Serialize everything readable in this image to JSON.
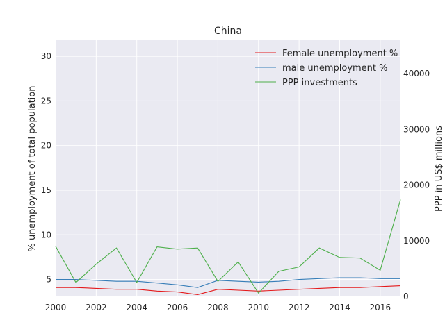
{
  "chart_data": {
    "type": "line",
    "title": "China",
    "ylabel_left": "% unemployment of total population",
    "ylabel_right": "PPP in US$ millions",
    "x": [
      2000,
      2001,
      2002,
      2003,
      2004,
      2005,
      2006,
      2007,
      2008,
      2009,
      2010,
      2011,
      2012,
      2013,
      2014,
      2015,
      2016,
      2017
    ],
    "xlim": [
      2000,
      2017
    ],
    "x_ticks": [
      2000,
      2002,
      2004,
      2006,
      2008,
      2010,
      2012,
      2014,
      2016
    ],
    "y_left_lim": [
      3.1,
      31.8
    ],
    "y_left_ticks": [
      5,
      10,
      15,
      20,
      25,
      30
    ],
    "y_right_lim": [
      0,
      46000
    ],
    "y_right_ticks": [
      0,
      10000,
      20000,
      30000,
      40000
    ],
    "grid": true,
    "legend_position": "top-right",
    "series": [
      {
        "name": "Female unemployment %",
        "axis": "left",
        "color": "#e41a1c",
        "values": [
          4.1,
          4.1,
          4.0,
          3.9,
          3.9,
          3.7,
          3.6,
          3.3,
          3.9,
          3.8,
          3.7,
          3.8,
          3.9,
          4.0,
          4.1,
          4.1,
          4.2,
          4.3
        ]
      },
      {
        "name": "male unemployment %",
        "axis": "left",
        "color": "#377eb8",
        "values": [
          5.0,
          5.0,
          4.9,
          4.8,
          4.8,
          4.6,
          4.4,
          4.1,
          4.9,
          4.8,
          4.7,
          4.8,
          5.0,
          5.1,
          5.2,
          5.2,
          5.1,
          5.1
        ]
      },
      {
        "name": "PPP investments",
        "axis": "right",
        "color": "#4daf4a",
        "values": [
          9000,
          2500,
          5800,
          8700,
          2500,
          8900,
          8500,
          8700,
          2700,
          6200,
          600,
          4500,
          5300,
          8700,
          7000,
          6900,
          4700,
          17400
        ]
      }
    ]
  }
}
